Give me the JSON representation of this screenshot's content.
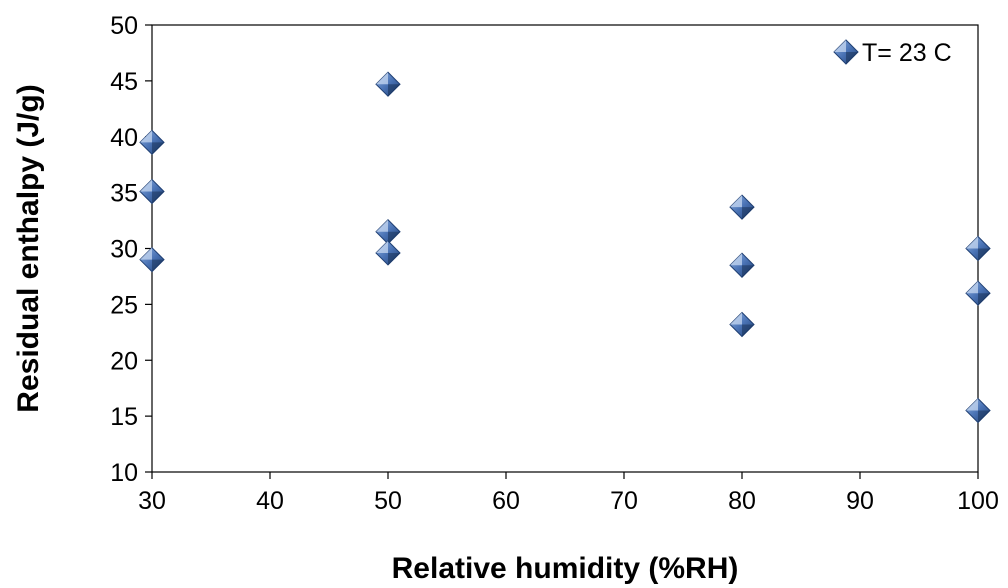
{
  "chart_data": {
    "type": "scatter",
    "title": "",
    "xlabel": "Relative humidity (%RH)",
    "ylabel": "Residual enthalpy (J/g)",
    "xlim": [
      30,
      100
    ],
    "ylim": [
      10,
      50
    ],
    "xticks": [
      "30",
      "40",
      "50",
      "60",
      "70",
      "80",
      "90",
      "100"
    ],
    "yticks": [
      "10",
      "15",
      "20",
      "25",
      "30",
      "35",
      "40",
      "45",
      "50"
    ],
    "grid": false,
    "legend": {
      "position": "top-right"
    },
    "series": [
      {
        "name": "T= 23 C",
        "marker": "diamond",
        "color": "#4a73b5",
        "points": [
          {
            "x": 30,
            "y": 39.5
          },
          {
            "x": 30,
            "y": 35.1
          },
          {
            "x": 30,
            "y": 29.0
          },
          {
            "x": 50,
            "y": 44.7
          },
          {
            "x": 50,
            "y": 31.5
          },
          {
            "x": 50,
            "y": 29.6
          },
          {
            "x": 80,
            "y": 33.7
          },
          {
            "x": 80,
            "y": 28.5
          },
          {
            "x": 80,
            "y": 23.2
          },
          {
            "x": 100,
            "y": 30.0
          },
          {
            "x": 100,
            "y": 26.0
          },
          {
            "x": 100,
            "y": 15.5
          }
        ]
      }
    ]
  }
}
